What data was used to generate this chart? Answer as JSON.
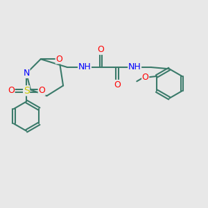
{
  "background_color": "#e8e8e8",
  "atom_color_C": "#3a7a6a",
  "atom_color_N": "#0000ff",
  "atom_color_O": "#ff0000",
  "atom_color_S": "#cccc00",
  "atom_color_H": "#808080",
  "bond_color": "#3a7a6a",
  "line_width": 1.5,
  "font_size": 9,
  "figsize": [
    3.0,
    3.0
  ],
  "dpi": 100,
  "xlim": [
    0,
    10
  ],
  "ylim": [
    0,
    10
  ]
}
